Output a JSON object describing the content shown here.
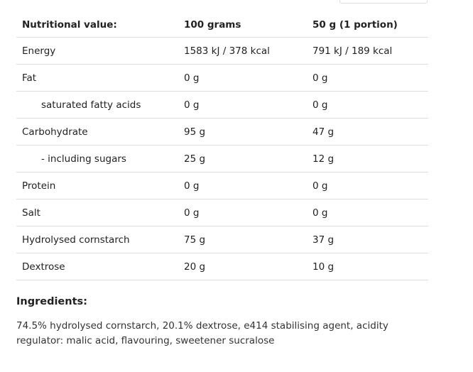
{
  "table": {
    "header": [
      "Nutritional value:",
      "100 grams",
      "50 g (1 portion)"
    ],
    "rows": [
      {
        "cells": [
          "Energy",
          "1583 kJ / 378 kcal",
          "791 kJ / 189 kcal"
        ],
        "sub": false
      },
      {
        "cells": [
          "Fat",
          "0 g",
          "0 g"
        ],
        "sub": false
      },
      {
        "cells": [
          "saturated fatty acids",
          "0 g",
          "0 g"
        ],
        "sub": true
      },
      {
        "cells": [
          "Carbohydrate",
          "95 g",
          "47 g"
        ],
        "sub": false
      },
      {
        "cells": [
          "- including sugars",
          "25 g",
          "12 g"
        ],
        "sub": true
      },
      {
        "cells": [
          "Protein",
          "0 g",
          "0 g"
        ],
        "sub": false
      },
      {
        "cells": [
          "Salt",
          "0 g",
          "0 g"
        ],
        "sub": false
      },
      {
        "cells": [
          "Hydrolysed cornstarch",
          "75 g",
          "37 g"
        ],
        "sub": false
      },
      {
        "cells": [
          "Dextrose",
          "20 g",
          "10 g"
        ],
        "sub": false
      }
    ]
  },
  "ingredients": {
    "title": "Ingredients:",
    "text": "74.5% hydrolysed cornstarch, 20.1% dextrose, e414 stabilising agent, acidity regulator: malic acid, flavouring, sweetener sucralose"
  }
}
